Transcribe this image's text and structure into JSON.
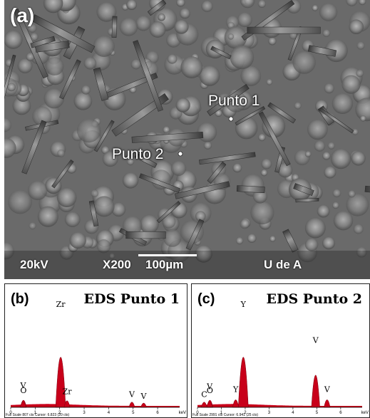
{
  "micrograph": {
    "panel_label": "(a)",
    "points": [
      {
        "label": "Punto 1"
      },
      {
        "label": "Punto 2"
      }
    ],
    "voltage": "20kV",
    "magnification": "X200",
    "scale": "100µm",
    "lab": "U de A"
  },
  "spectra": [
    {
      "panel_label": "(b)",
      "title": "EDS Punto 1",
      "status": "Full Scale 807 cts Cursor: 6.823  (20 cts)",
      "unit": "keV",
      "ticks": [
        "0",
        "1",
        "2",
        "3",
        "4",
        "5",
        "6"
      ],
      "peaks": [
        {
          "label": "O",
          "energy": 0.52,
          "height": 0.09
        },
        {
          "label": "V",
          "energy": 0.51,
          "height": 0.06
        },
        {
          "label": "Zr",
          "energy": 2.04,
          "height": 1.0
        },
        {
          "label": "Zr",
          "energy": 2.3,
          "height": 0.08
        },
        {
          "label": "V",
          "energy": 4.95,
          "height": 0.05
        },
        {
          "label": "V",
          "energy": 5.43,
          "height": 0.03
        }
      ]
    },
    {
      "panel_label": "(c)",
      "title": "EDS Punto 2",
      "status": "Full Scale 2991 cts Cursor: 6.941  (25 cts)",
      "unit": "keV",
      "ticks": [
        "0",
        "1",
        "2",
        "3",
        "4",
        "5",
        "6"
      ],
      "peaks": [
        {
          "label": "C",
          "energy": 0.28,
          "height": 0.05
        },
        {
          "label": "O",
          "energy": 0.52,
          "height": 0.09
        },
        {
          "label": "V",
          "energy": 0.51,
          "height": 0.05
        },
        {
          "label": "Y",
          "energy": 1.92,
          "height": 1.0
        },
        {
          "label": "Y",
          "energy": 1.6,
          "height": 0.1
        },
        {
          "label": "V",
          "energy": 4.95,
          "height": 0.62
        },
        {
          "label": "V",
          "energy": 5.43,
          "height": 0.1
        }
      ]
    }
  ],
  "colors": {
    "spectrum_fill": "#c8001a",
    "background": "#ffffff"
  }
}
